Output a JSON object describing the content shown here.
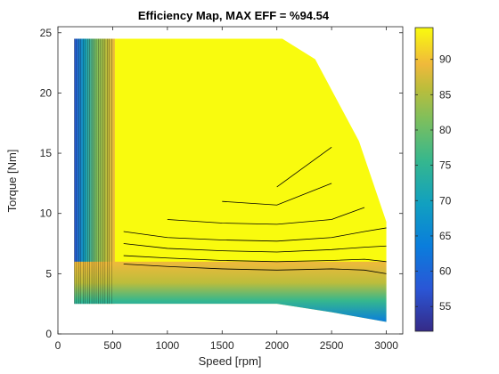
{
  "chart_data": {
    "type": "contour",
    "title": "Efficiency Map, MAX EFF = %94.54",
    "xlabel": "Speed [rpm]",
    "ylabel": "Torque [Nm]",
    "xlim": [
      0,
      3150
    ],
    "ylim": [
      0,
      25.5
    ],
    "xticks": [
      0,
      500,
      1000,
      1500,
      2000,
      2500,
      3000
    ],
    "yticks": [
      0,
      5,
      10,
      15,
      20,
      25
    ],
    "x_tick_labels": [
      "0",
      "500",
      "1000",
      "1500",
      "2000",
      "2500",
      "3000"
    ],
    "y_tick_labels": [
      "0",
      "5",
      "10",
      "15",
      "20",
      "25"
    ],
    "max_efficiency_percent": 94.54,
    "colorbar": {
      "range": [
        51.5,
        94.5
      ],
      "ticks": [
        55,
        60,
        65,
        70,
        75,
        80,
        85,
        90
      ],
      "tick_labels": [
        "55",
        "60",
        "65",
        "70",
        "75",
        "80",
        "85",
        "90"
      ],
      "colormap": "parula"
    },
    "region": {
      "speed_min": 150,
      "torque_min": 2.5,
      "torque_max": 24.5,
      "torque_limit_curve": [
        [
          150,
          24.5
        ],
        [
          2050,
          24.5
        ],
        [
          2350,
          22.8
        ],
        [
          2750,
          16
        ],
        [
          3000,
          9.3
        ],
        [
          3000,
          1
        ]
      ],
      "bottom_curve": [
        [
          150,
          2.5
        ],
        [
          2000,
          2.5
        ],
        [
          2500,
          1.8
        ],
        [
          3000,
          1
        ]
      ]
    },
    "efficiency_contours_torque_at_speed": {
      "levels": [
        93.5,
        93,
        92,
        91,
        90,
        89,
        88
      ],
      "speeds": [
        600,
        1000,
        1500,
        2000,
        2500,
        2800,
        3000
      ],
      "torque_values": [
        [
          null,
          null,
          null,
          12.2,
          15.5,
          null,
          null
        ],
        [
          null,
          null,
          11,
          10.7,
          12.5,
          null,
          null
        ],
        [
          null,
          9.5,
          9.2,
          9.1,
          9.5,
          10.5,
          null
        ],
        [
          8.5,
          8.0,
          7.8,
          7.7,
          8.0,
          8.5,
          8.8
        ],
        [
          7.5,
          7.1,
          6.9,
          6.8,
          7.0,
          7.2,
          7.3
        ],
        [
          6.5,
          6.3,
          6.1,
          6.0,
          6.1,
          6.2,
          6.0
        ],
        [
          5.8,
          5.6,
          5.4,
          5.3,
          5.4,
          5.3,
          5.0
        ]
      ]
    }
  }
}
